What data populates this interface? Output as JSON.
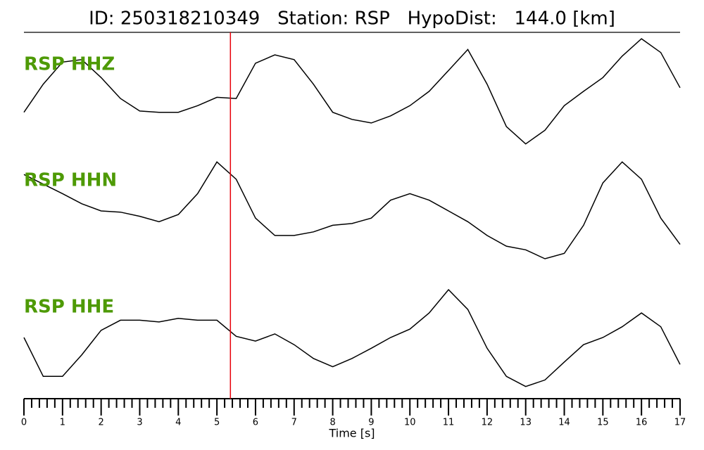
{
  "chart_data": {
    "type": "line",
    "title": "ID: 250318210349   Station: RSP   HypoDist:   144.0 [km]",
    "xlabel": "Time [s]",
    "xlim": [
      0,
      17
    ],
    "xticks": [
      0,
      1,
      2,
      3,
      4,
      5,
      6,
      7,
      8,
      9,
      10,
      11,
      12,
      13,
      14,
      15,
      16,
      17
    ],
    "xminorticks": [
      0.2,
      0.4,
      0.6,
      0.8,
      1.2,
      1.4,
      1.6,
      1.8,
      2.2,
      2.4,
      2.6,
      2.8,
      3.2,
      3.4,
      3.6,
      3.8,
      4.2,
      4.4,
      4.6,
      4.8,
      5.2,
      5.4,
      5.6,
      5.8,
      6.2,
      6.4,
      6.6,
      6.8,
      7.2,
      7.4,
      7.6,
      7.8,
      8.2,
      8.4,
      8.6,
      8.8,
      9.2,
      9.4,
      9.6,
      9.8,
      10.2,
      10.4,
      10.6,
      10.8,
      11.2,
      11.4,
      11.6,
      11.8,
      12.2,
      12.4,
      12.6,
      12.8,
      13.2,
      13.4,
      13.6,
      13.8,
      14.2,
      14.4,
      14.6,
      14.8,
      15.2,
      15.4,
      15.6,
      15.8,
      16.2,
      16.4,
      16.6,
      16.8
    ],
    "ylim": [
      -1,
      1
    ],
    "pick": {
      "x": 5.35,
      "color": "#e8000b"
    },
    "x": [
      0,
      0.5,
      1,
      1.5,
      2,
      2.5,
      3,
      3.5,
      4,
      4.5,
      5,
      5.5,
      6,
      6.5,
      7,
      7.5,
      8,
      8.5,
      9,
      9.5,
      10,
      10.5,
      11,
      11.5,
      12,
      12.5,
      13,
      13.5,
      14,
      14.5,
      15,
      15.5,
      16,
      16.5,
      17
    ],
    "label_color": "#4e9a06",
    "series": [
      {
        "name": "RSP HHZ",
        "color": "#000000",
        "values": [
          -0.29,
          0.18,
          0.55,
          0.59,
          0.29,
          -0.06,
          -0.27,
          -0.29,
          -0.29,
          -0.18,
          -0.04,
          -0.06,
          0.53,
          0.67,
          0.59,
          0.18,
          -0.29,
          -0.41,
          -0.47,
          -0.35,
          -0.18,
          0.06,
          0.41,
          0.76,
          0.18,
          -0.53,
          -0.82,
          -0.59,
          -0.18,
          0.06,
          0.29,
          0.65,
          0.94,
          0.71,
          0.12
        ]
      },
      {
        "name": "RSP HHN",
        "color": "#000000",
        "values": [
          0.61,
          0.45,
          0.29,
          0.12,
          0,
          -0.02,
          -0.09,
          -0.18,
          -0.06,
          0.29,
          0.82,
          0.53,
          -0.12,
          -0.41,
          -0.41,
          -0.35,
          -0.24,
          -0.21,
          -0.12,
          0.18,
          0.29,
          0.18,
          0,
          -0.18,
          -0.41,
          -0.59,
          -0.65,
          -0.8,
          -0.71,
          -0.24,
          0.47,
          0.82,
          0.53,
          -0.12,
          -0.56
        ]
      },
      {
        "name": "RSP HHE",
        "color": "#000000",
        "values": [
          0,
          -0.65,
          -0.65,
          -0.29,
          0.12,
          0.29,
          0.29,
          0.26,
          0.32,
          0.29,
          0.29,
          0.02,
          -0.06,
          0.06,
          -0.12,
          -0.35,
          -0.49,
          -0.35,
          -0.18,
          0,
          0.14,
          0.41,
          0.8,
          0.47,
          -0.18,
          -0.65,
          -0.82,
          -0.71,
          -0.41,
          -0.12,
          0,
          0.18,
          0.41,
          0.18,
          -0.45
        ]
      }
    ]
  }
}
